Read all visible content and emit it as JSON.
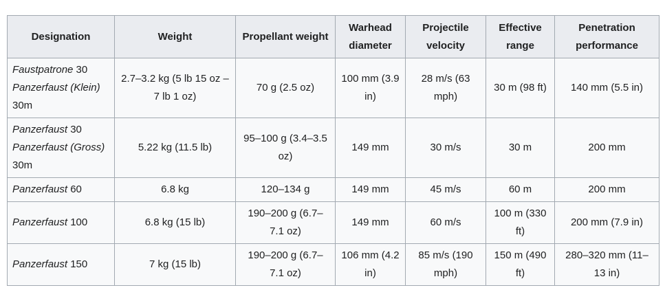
{
  "table": {
    "header": [
      "Designation",
      "Weight",
      "Propellant weight",
      "Warhead diameter",
      "Projectile velocity",
      "Effective range",
      "Penetration performance"
    ],
    "rows": [
      [
        [
          {
            "text": "Faustpatrone",
            "italic": true
          },
          {
            "text": " 30 ",
            "italic": false
          },
          {
            "text": "Panzerfaust (Klein)",
            "italic": true
          },
          {
            "text": " 30m",
            "italic": false
          }
        ],
        "2.7–3.2 kg (5 lb 15 oz – 7 lb 1 oz)",
        "70 g (2.5 oz)",
        "100 mm (3.9 in)",
        "28 m/s (63 mph)",
        "30 m (98 ft)",
        "140 mm (5.5 in)"
      ],
      [
        [
          {
            "text": "Panzerfaust",
            "italic": true
          },
          {
            "text": " 30 ",
            "italic": false
          },
          {
            "text": "Panzerfaust (Gross)",
            "italic": true
          },
          {
            "text": " 30m",
            "italic": false
          }
        ],
        "5.22 kg (11.5 lb)",
        "95–100 g (3.4–3.5 oz)",
        "149 mm",
        "30 m/s",
        "30 m",
        "200 mm"
      ],
      [
        [
          {
            "text": "Panzerfaust",
            "italic": true
          },
          {
            "text": " 60",
            "italic": false
          }
        ],
        "6.8 kg",
        "120–134 g",
        "149 mm",
        "45 m/s",
        "60 m",
        "200 mm"
      ],
      [
        [
          {
            "text": "Panzerfaust",
            "italic": true
          },
          {
            "text": " 100",
            "italic": false
          }
        ],
        "6.8 kg (15 lb)",
        "190–200 g (6.7–7.1 oz)",
        "149 mm",
        "60 m/s",
        "100 m (330 ft)",
        "200 mm (7.9 in)"
      ],
      [
        [
          {
            "text": "Panzerfaust",
            "italic": true
          },
          {
            "text": " 150",
            "italic": false
          }
        ],
        "7 kg (15 lb)",
        "190–200 g (6.7–7.1 oz)",
        "106 mm (4.2 in)",
        "85 m/s (190 mph)",
        "150 m (490 ft)",
        "280–320 mm (11–13 in)"
      ]
    ]
  }
}
